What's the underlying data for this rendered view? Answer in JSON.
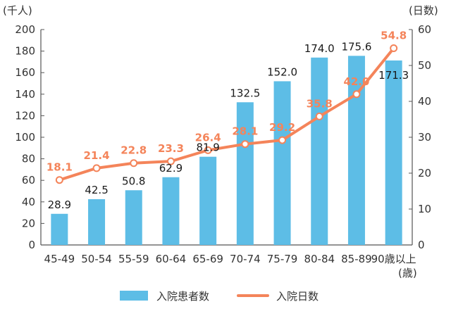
{
  "chart_data": {
    "type": "bar",
    "categories": [
      "45-49",
      "50-54",
      "55-59",
      "60-64",
      "65-69",
      "70-74",
      "75-79",
      "80-84",
      "85-89",
      "90歳以上"
    ],
    "x_unit": "(歳)",
    "series": [
      {
        "name": "入院患者数",
        "type": "bar",
        "axis": "left",
        "values": [
          28.9,
          42.5,
          50.8,
          62.9,
          81.9,
          132.5,
          152.0,
          174.0,
          175.6,
          171.3
        ],
        "labels": [
          "28.9",
          "42.5",
          "50.8",
          "62.9",
          "81.9",
          "132.5",
          "152.0",
          "174.0",
          "175.6",
          "171.3"
        ],
        "color": "#5dbde6"
      },
      {
        "name": "入院日数",
        "type": "line",
        "axis": "right",
        "values": [
          18.1,
          21.4,
          22.8,
          23.3,
          26.4,
          28.1,
          29.2,
          35.8,
          42.0,
          54.8
        ],
        "labels": [
          "18.1",
          "21.4",
          "22.8",
          "23.3",
          "26.4",
          "28.1",
          "29.2",
          "35.8",
          "42.0",
          "54.8"
        ],
        "color": "#f4845a"
      }
    ],
    "y_left": {
      "unit": "(千人)",
      "min": 0,
      "max": 200,
      "ticks": [
        0,
        20,
        40,
        60,
        80,
        100,
        120,
        140,
        160,
        180,
        200
      ]
    },
    "y_right": {
      "unit": "(日数)",
      "min": 0,
      "max": 60,
      "ticks": [
        0,
        10,
        20,
        30,
        40,
        50,
        60
      ]
    },
    "grid": false,
    "legend_position": "bottom"
  }
}
